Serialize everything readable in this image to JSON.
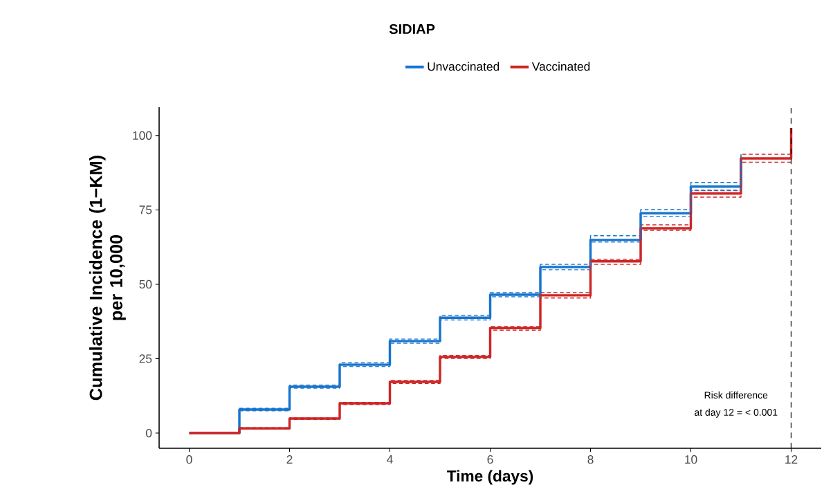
{
  "chart_data": {
    "type": "step",
    "title": "SIDIAP",
    "xlabel": "Time (days)",
    "ylabel": "Cumulative Incidence (1−KM)\nper 10,000",
    "x": [
      0,
      1,
      2,
      3,
      4,
      5,
      6,
      7,
      8,
      9,
      10,
      11,
      12
    ],
    "series": [
      {
        "color": "#1874cd",
        "line_style": "dashed",
        "values": [
          null,
          7.5,
          15.1,
          22.4,
          30.2,
          38.0,
          45.8,
          54.9,
          64.2,
          72.8,
          81.6,
          91.0,
          null
        ]
      },
      {
        "color": "#1874cd",
        "line_style": "dashed",
        "values": [
          null,
          8.3,
          16.1,
          23.6,
          31.6,
          39.6,
          47.2,
          56.7,
          66.3,
          75.1,
          84.2,
          93.7,
          null
        ]
      },
      {
        "color": "#cd2626",
        "line_style": "dashed",
        "values": [
          null,
          1.4,
          4.6,
          9.6,
          16.7,
          25.1,
          34.6,
          45.4,
          56.7,
          68.1,
          79.3,
          91.0,
          91.0
        ]
      },
      {
        "color": "#cd2626",
        "line_style": "dashed",
        "values": [
          null,
          1.8,
          5.1,
          10.3,
          17.7,
          26.1,
          35.8,
          47.2,
          58.4,
          70.0,
          81.5,
          93.7,
          93.7
        ]
      },
      {
        "name": "Unvaccinated",
        "color": "#1874cd",
        "values": [
          0,
          7.9,
          15.6,
          23.0,
          30.9,
          38.8,
          46.5,
          55.8,
          64.9,
          73.9,
          82.8,
          92.3,
          null
        ]
      },
      {
        "name": "Vaccinated",
        "color": "#cd2626",
        "values": [
          0,
          1.6,
          4.9,
          10.0,
          17.2,
          25.6,
          35.3,
          46.3,
          57.7,
          68.8,
          80.5,
          92.3,
          102.5
        ]
      }
    ],
    "xlim": [
      -0.6,
      12.6
    ],
    "ylim": [
      -5.1,
      109.5
    ],
    "xticks": [
      0,
      2,
      4,
      6,
      8,
      10,
      12
    ],
    "yticks": [
      0,
      25,
      50,
      75,
      100
    ],
    "ref_lines": [
      {
        "axis": "x",
        "value": 12,
        "color": "#000000",
        "line_style": "dashed"
      }
    ],
    "annotations": [
      "Risk difference",
      "at day 12 = < 0.001"
    ],
    "legend": "top",
    "grid": false,
    "marker": "none",
    "line_style": "solid"
  }
}
